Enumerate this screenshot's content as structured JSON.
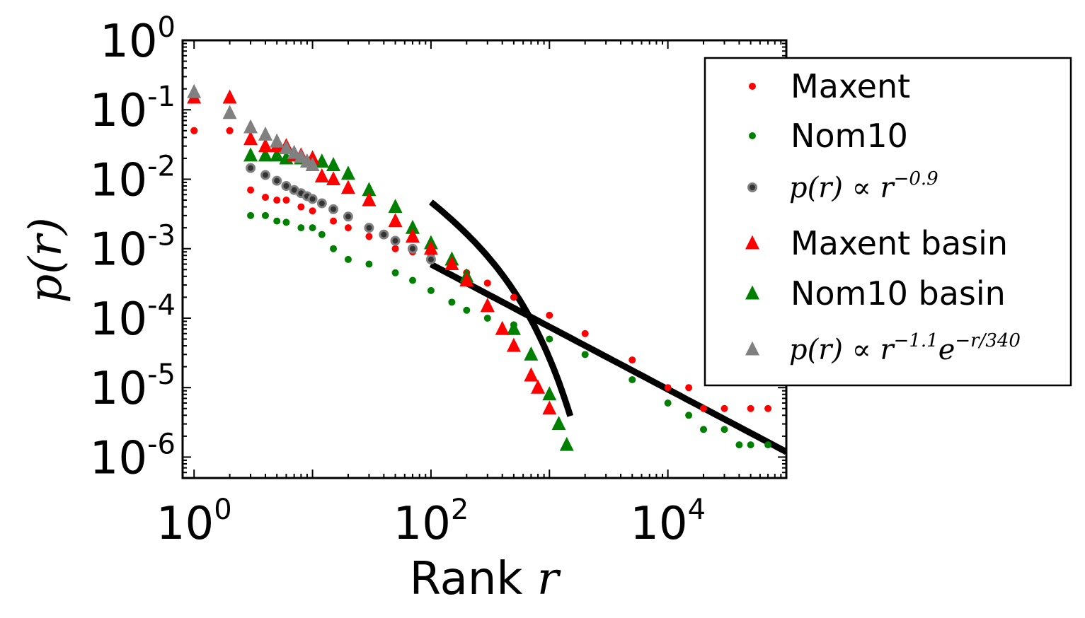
{
  "chart_data": {
    "type": "scatter",
    "xscale": "log",
    "yscale": "log",
    "xlim": [
      0.8,
      100000
    ],
    "ylim": [
      5e-07,
      1
    ],
    "xlabel_text": "Rank ",
    "xlabel_var": "r",
    "ylabel": "p(r)",
    "x_ticks": [
      {
        "base": "10",
        "exp": "0"
      },
      {
        "base": "10",
        "exp": "2"
      },
      {
        "base": "10",
        "exp": "4"
      }
    ],
    "y_ticks": [
      {
        "base": "10",
        "exp": "0"
      },
      {
        "base": "10",
        "exp": "-1"
      },
      {
        "base": "10",
        "exp": "-2"
      },
      {
        "base": "10",
        "exp": "-3"
      },
      {
        "base": "10",
        "exp": "-4"
      },
      {
        "base": "10",
        "exp": "-5"
      },
      {
        "base": "10",
        "exp": "-6"
      }
    ],
    "legend_position": "upper-right-outside",
    "colors": {
      "maxent": "#ff0000",
      "nom10": "#008000",
      "fit_power": "#808080",
      "fit_line": "#000000"
    },
    "series": [
      {
        "name": "Maxent",
        "marker": "dot",
        "color": "#ff0000",
        "x": [
          1,
          2,
          3,
          4,
          5,
          6,
          8,
          10,
          15,
          20,
          30,
          50,
          70,
          100,
          150,
          200,
          300,
          500,
          1000,
          2000,
          5000,
          10000,
          15000,
          20000,
          30000,
          50000,
          70000
        ],
        "y": [
          0.05,
          0.05,
          0.007,
          0.0055,
          0.005,
          0.005,
          0.004,
          0.0035,
          0.0025,
          0.002,
          0.0015,
          0.001,
          0.0009,
          0.0008,
          0.0006,
          0.00045,
          0.00032,
          0.0002,
          0.00011,
          6e-05,
          2.5e-05,
          1e-05,
          1e-05,
          5e-06,
          5e-06,
          5e-06,
          5e-06
        ]
      },
      {
        "name": "Nom10",
        "marker": "dot",
        "color": "#008000",
        "x": [
          1,
          2,
          3,
          4,
          5,
          6,
          8,
          10,
          12,
          15,
          20,
          30,
          50,
          70,
          100,
          150,
          200,
          300,
          500,
          1000,
          2000,
          5000,
          10000,
          15000,
          20000,
          30000,
          40000,
          50000,
          70000
        ],
        "y": [
          0.05,
          0.05,
          0.003,
          0.003,
          0.0025,
          0.0024,
          0.002,
          0.002,
          0.0016,
          0.001,
          0.0007,
          0.0006,
          0.00045,
          0.00035,
          0.00025,
          0.00017,
          0.00013,
          0.0001,
          8e-05,
          5e-05,
          3e-05,
          1.3e-05,
          6e-06,
          4e-06,
          2.5e-06,
          2.5e-06,
          1.5e-06,
          1.5e-06,
          1.5e-06
        ]
      },
      {
        "name": "Maxent basin",
        "marker": "triangle",
        "color": "#ff0000",
        "x": [
          1,
          2,
          3,
          4,
          5,
          6,
          7,
          8,
          10,
          12,
          15,
          20,
          30,
          50,
          70,
          100,
          150,
          200,
          300,
          400,
          500,
          700,
          800,
          1000
        ],
        "y": [
          0.15,
          0.15,
          0.038,
          0.03,
          0.03,
          0.03,
          0.022,
          0.022,
          0.02,
          0.011,
          0.01,
          0.0075,
          0.005,
          0.0025,
          0.0015,
          0.001,
          0.0006,
          0.00035,
          0.00015,
          7e-05,
          4e-05,
          1.5e-05,
          1e-05,
          5e-06
        ]
      },
      {
        "name": "Nom10 basin",
        "marker": "triangle",
        "color": "#008000",
        "x": [
          3,
          4,
          5,
          6,
          8,
          10,
          12,
          15,
          20,
          30,
          50,
          70,
          100,
          150,
          200,
          300,
          500,
          700,
          1000,
          1200,
          1400
        ],
        "y": [
          0.022,
          0.022,
          0.022,
          0.02,
          0.02,
          0.02,
          0.018,
          0.016,
          0.012,
          0.007,
          0.004,
          0.002,
          0.0012,
          0.0007,
          0.0004,
          0.00015,
          7e-05,
          3e-05,
          8e-06,
          3e-06,
          1.5e-06
        ]
      },
      {
        "name": "p(r) ∝ r^-0.9",
        "marker": "ring",
        "color": "#808080",
        "x": [
          3,
          4,
          5,
          6,
          7,
          8,
          9,
          10,
          12,
          15,
          20,
          30,
          40,
          50,
          70,
          100
        ],
        "y": [
          0.0145,
          0.0115,
          0.0095,
          0.008,
          0.007,
          0.0063,
          0.0057,
          0.0052,
          0.0045,
          0.0037,
          0.0029,
          0.002,
          0.0016,
          0.0013,
          0.001,
          0.0007
        ]
      },
      {
        "name": "p(r) ∝ r^-1.1 e^(-r/340)",
        "marker": "triangle",
        "color": "#808080",
        "x": [
          1,
          2,
          3,
          4,
          5,
          6,
          7,
          8,
          9,
          10
        ],
        "y": [
          0.18,
          0.09,
          0.056,
          0.044,
          0.035,
          0.028,
          0.024,
          0.021,
          0.018,
          0.016
        ]
      }
    ],
    "fit_lines": [
      {
        "name": "power-law fit line",
        "formula": "0.014*(r/3)^-0.9",
        "x_range": [
          100,
          100000
        ]
      },
      {
        "name": "exponential cutoff fit line",
        "formula": "r^-1.1 * exp(-r/340)",
        "x_range": [
          100,
          1500
        ]
      }
    ],
    "legend": [
      {
        "label": "Maxent",
        "marker": "dot",
        "color": "#ff0000",
        "math": false
      },
      {
        "label": "Nom10",
        "marker": "dot",
        "color": "#008000",
        "math": false
      },
      {
        "label": "p(r) ∝ r",
        "sup": "−0.9",
        "marker": "ring",
        "color": "#808080",
        "math": true
      },
      {
        "label": "Maxent basin",
        "marker": "triangle",
        "color": "#ff0000",
        "math": false
      },
      {
        "label": "Nom10 basin",
        "marker": "triangle",
        "color": "#008000",
        "math": false
      },
      {
        "label": "p(r) ∝ r",
        "sup": "−1.1",
        "label2": "e",
        "sup2": "−r/340",
        "marker": "triangle",
        "color": "#808080",
        "math": true
      }
    ]
  }
}
